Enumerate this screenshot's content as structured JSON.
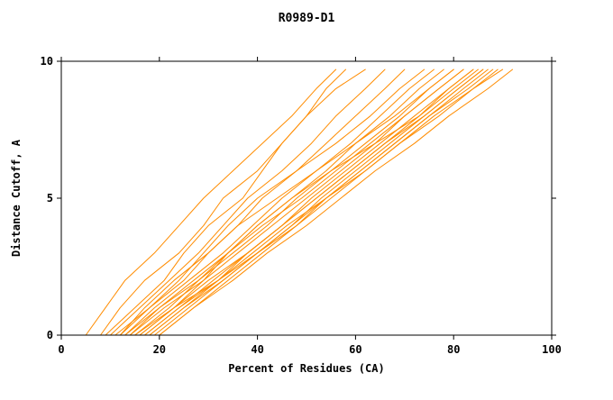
{
  "chart_data": {
    "type": "line",
    "title": "R0989-D1",
    "xlabel": "Percent of Residues (CA)",
    "ylabel": "Distance Cutoff, A",
    "xlim": [
      0,
      100
    ],
    "ylim": [
      0,
      10
    ],
    "x_ticks": [
      0,
      20,
      40,
      60,
      80,
      100
    ],
    "y_ticks": [
      0,
      5,
      10
    ],
    "grid": false,
    "legend": "none",
    "line_color": "#ff8c00",
    "axis_color": "#000000",
    "series": [
      [
        [
          5,
          0
        ],
        [
          9,
          1
        ],
        [
          13,
          2
        ],
        [
          19,
          3
        ],
        [
          24,
          4
        ],
        [
          29,
          5
        ],
        [
          35,
          6
        ],
        [
          41,
          7
        ],
        [
          47,
          8
        ],
        [
          52,
          9
        ],
        [
          56,
          9.7
        ]
      ],
      [
        [
          8,
          0
        ],
        [
          12,
          1
        ],
        [
          17,
          2
        ],
        [
          24,
          3
        ],
        [
          29,
          4
        ],
        [
          33,
          5
        ],
        [
          40,
          6
        ],
        [
          45,
          7
        ],
        [
          50,
          8
        ],
        [
          54,
          9
        ],
        [
          58,
          9.7
        ]
      ],
      [
        [
          9,
          0
        ],
        [
          15,
          1
        ],
        [
          21,
          2
        ],
        [
          25,
          3
        ],
        [
          30,
          4
        ],
        [
          37,
          5
        ],
        [
          41,
          6
        ],
        [
          45,
          7
        ],
        [
          50,
          8
        ],
        [
          56,
          9
        ],
        [
          62,
          9.7
        ]
      ],
      [
        [
          10,
          0
        ],
        [
          16,
          1
        ],
        [
          22,
          2
        ],
        [
          28,
          3
        ],
        [
          33,
          4
        ],
        [
          38,
          5
        ],
        [
          45,
          6
        ],
        [
          51,
          7
        ],
        [
          56,
          8
        ],
        [
          62,
          9
        ],
        [
          66,
          9.7
        ]
      ],
      [
        [
          12,
          0
        ],
        [
          17,
          1
        ],
        [
          23,
          2
        ],
        [
          30,
          3
        ],
        [
          36,
          4
        ],
        [
          41,
          5
        ],
        [
          48,
          6
        ],
        [
          54,
          7
        ],
        [
          60,
          8
        ],
        [
          66,
          9
        ],
        [
          70,
          9.7
        ]
      ],
      [
        [
          11,
          0
        ],
        [
          18,
          1
        ],
        [
          24,
          2
        ],
        [
          29,
          3
        ],
        [
          34,
          4
        ],
        [
          40,
          5
        ],
        [
          48,
          6
        ],
        [
          56,
          7
        ],
        [
          63,
          8
        ],
        [
          69,
          9
        ],
        [
          74,
          9.7
        ]
      ],
      [
        [
          13,
          0
        ],
        [
          19,
          1
        ],
        [
          26,
          2
        ],
        [
          33,
          3
        ],
        [
          39,
          4
        ],
        [
          45,
          5
        ],
        [
          52,
          6
        ],
        [
          59,
          7
        ],
        [
          65,
          8
        ],
        [
          71,
          9
        ],
        [
          76,
          9.7
        ]
      ],
      [
        [
          14,
          0
        ],
        [
          20,
          1
        ],
        [
          27,
          2
        ],
        [
          34,
          3
        ],
        [
          40,
          4
        ],
        [
          47,
          5
        ],
        [
          54,
          6
        ],
        [
          60,
          7
        ],
        [
          67,
          8
        ],
        [
          73,
          9
        ],
        [
          78,
          9.7
        ]
      ],
      [
        [
          12,
          0
        ],
        [
          18,
          1
        ],
        [
          25,
          2
        ],
        [
          30,
          3
        ],
        [
          36,
          4
        ],
        [
          44,
          5
        ],
        [
          52,
          6
        ],
        [
          60,
          7
        ],
        [
          68,
          8
        ],
        [
          75,
          9
        ],
        [
          80,
          9.7
        ]
      ],
      [
        [
          15,
          0
        ],
        [
          22,
          1
        ],
        [
          28,
          2
        ],
        [
          35,
          3
        ],
        [
          42,
          4
        ],
        [
          48,
          5
        ],
        [
          55,
          6
        ],
        [
          62,
          7
        ],
        [
          69,
          8
        ],
        [
          75,
          9
        ],
        [
          80,
          9.7
        ]
      ],
      [
        [
          16,
          0
        ],
        [
          23,
          1
        ],
        [
          29,
          2
        ],
        [
          36,
          3
        ],
        [
          43,
          4
        ],
        [
          50,
          5
        ],
        [
          57,
          6
        ],
        [
          64,
          7
        ],
        [
          70,
          8
        ],
        [
          77,
          9
        ],
        [
          82,
          9.7
        ]
      ],
      [
        [
          13,
          0
        ],
        [
          20,
          1
        ],
        [
          28,
          2
        ],
        [
          34,
          3
        ],
        [
          41,
          4
        ],
        [
          49,
          5
        ],
        [
          56,
          6
        ],
        [
          63,
          7
        ],
        [
          70,
          8
        ],
        [
          77,
          9
        ],
        [
          82,
          9.7
        ]
      ],
      [
        [
          17,
          0
        ],
        [
          24,
          1
        ],
        [
          31,
          2
        ],
        [
          38,
          3
        ],
        [
          45,
          4
        ],
        [
          51,
          5
        ],
        [
          58,
          6
        ],
        [
          65,
          7
        ],
        [
          72,
          8
        ],
        [
          79,
          9
        ],
        [
          84,
          9.7
        ]
      ],
      [
        [
          18,
          0
        ],
        [
          25,
          1
        ],
        [
          32,
          2
        ],
        [
          38,
          3
        ],
        [
          45,
          4
        ],
        [
          52,
          5
        ],
        [
          59,
          6
        ],
        [
          66,
          7
        ],
        [
          73,
          8
        ],
        [
          79,
          9
        ],
        [
          84,
          9.7
        ]
      ],
      [
        [
          14,
          0
        ],
        [
          21,
          1
        ],
        [
          29,
          2
        ],
        [
          34,
          3
        ],
        [
          40,
          4
        ],
        [
          47,
          5
        ],
        [
          55,
          6
        ],
        [
          64,
          7
        ],
        [
          73,
          8
        ],
        [
          80,
          9
        ],
        [
          85,
          9.7
        ]
      ],
      [
        [
          19,
          0
        ],
        [
          26,
          1
        ],
        [
          33,
          2
        ],
        [
          40,
          3
        ],
        [
          47,
          4
        ],
        [
          53,
          5
        ],
        [
          60,
          6
        ],
        [
          67,
          7
        ],
        [
          74,
          8
        ],
        [
          81,
          9
        ],
        [
          86,
          9.7
        ]
      ],
      [
        [
          16,
          0
        ],
        [
          23,
          1
        ],
        [
          30,
          2
        ],
        [
          38,
          3
        ],
        [
          45,
          4
        ],
        [
          52,
          5
        ],
        [
          59,
          6
        ],
        [
          66,
          7
        ],
        [
          74,
          8
        ],
        [
          81,
          9
        ],
        [
          86,
          9.7
        ]
      ],
      [
        [
          20,
          0
        ],
        [
          27,
          1
        ],
        [
          34,
          2
        ],
        [
          41,
          3
        ],
        [
          48,
          4
        ],
        [
          54,
          5
        ],
        [
          61,
          6
        ],
        [
          68,
          7
        ],
        [
          75,
          8
        ],
        [
          82,
          9
        ],
        [
          87,
          9.7
        ]
      ],
      [
        [
          17,
          0
        ],
        [
          24,
          1
        ],
        [
          32,
          2
        ],
        [
          39,
          3
        ],
        [
          46,
          4
        ],
        [
          54,
          5
        ],
        [
          61,
          6
        ],
        [
          68,
          7
        ],
        [
          75,
          8
        ],
        [
          83,
          9
        ],
        [
          88,
          9.7
        ]
      ],
      [
        [
          18,
          0
        ],
        [
          25,
          1
        ],
        [
          33,
          2
        ],
        [
          40,
          3
        ],
        [
          47,
          4
        ],
        [
          54,
          5
        ],
        [
          62,
          6
        ],
        [
          69,
          7
        ],
        [
          76,
          8
        ],
        [
          84,
          9
        ],
        [
          89,
          9.7
        ]
      ],
      [
        [
          15,
          0
        ],
        [
          23,
          1
        ],
        [
          32,
          2
        ],
        [
          40,
          3
        ],
        [
          48,
          4
        ],
        [
          55,
          5
        ],
        [
          62,
          6
        ],
        [
          69,
          7
        ],
        [
          77,
          8
        ],
        [
          84,
          9
        ],
        [
          90,
          9.7
        ]
      ],
      [
        [
          20,
          0
        ],
        [
          27,
          1
        ],
        [
          35,
          2
        ],
        [
          42,
          3
        ],
        [
          50,
          4
        ],
        [
          57,
          5
        ],
        [
          64,
          6
        ],
        [
          72,
          7
        ],
        [
          79,
          8
        ],
        [
          87,
          9
        ],
        [
          92,
          9.7
        ]
      ]
    ]
  }
}
